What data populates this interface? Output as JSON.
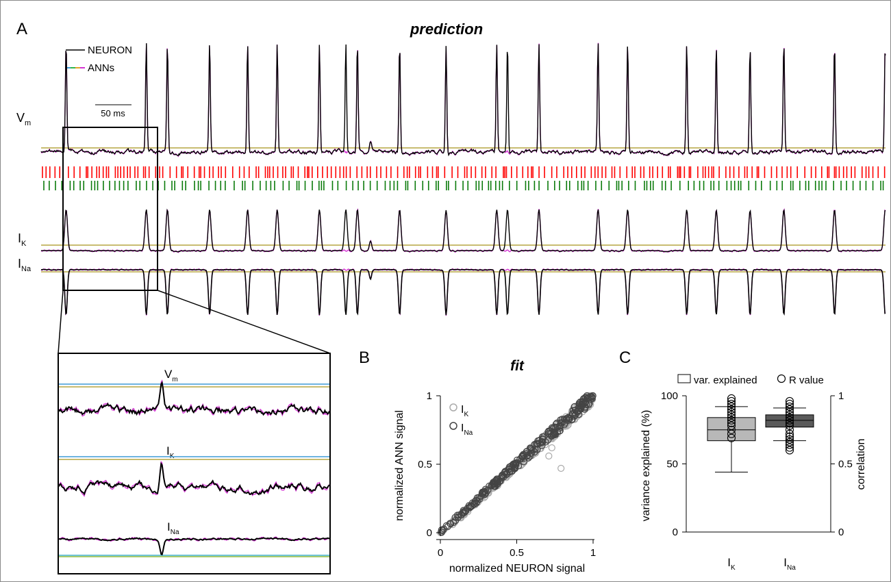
{
  "colors": {
    "neuron": "#000000",
    "ann": "#d433d4",
    "baseline": "#b5a642",
    "baseline_alt": "#3f9bd6",
    "exc_spikes": "#ff0000",
    "inh_spikes": "#0a7a0a",
    "box_light": "#b8b8b8",
    "box_dark": "#5a5a5a",
    "scatter_light": "#aaaaaa",
    "scatter_dark": "#444444"
  },
  "panel_a": {
    "label": "A",
    "title": "prediction",
    "legend": {
      "neuron": "NEURON",
      "ann": "ANNs"
    },
    "scale_bar": "50 ms",
    "traces": {
      "vm": "V",
      "vm_sub": "m",
      "ik": "I",
      "ik_sub": "K",
      "ina": "I",
      "ina_sub": "Na"
    },
    "spike_times_ap": [
      3,
      22,
      27,
      37,
      46,
      53,
      63,
      72,
      82,
      93,
      105,
      115,
      129,
      136,
      150,
      157,
      165,
      173,
      185,
      197
    ],
    "spike_times_missed": [
      57,
      82
    ],
    "spike_times_small": [
      59
    ],
    "inset": {
      "vm": "V",
      "vm_sub": "m",
      "ik": "I",
      "ik_sub": "K",
      "ina": "I",
      "ina_sub": "Na"
    }
  },
  "chart_data": [
    {
      "panel": "B",
      "type": "scatter",
      "title": "fit",
      "xlabel": "normalized NEURON signal",
      "ylabel": "normalized ANN signal",
      "xlim": [
        0,
        1
      ],
      "ylim": [
        0,
        1
      ],
      "x_ticks": [
        "0",
        "0.5",
        "1"
      ],
      "y_ticks": [
        "0",
        "0.5",
        "1"
      ],
      "legend": [
        {
          "name": "I",
          "sub": "K",
          "color": "scatter_light"
        },
        {
          "name": "I",
          "sub": "Na",
          "color": "scatter_dark"
        }
      ],
      "series": [
        {
          "name": "IK",
          "trend": {
            "x0": 0,
            "x1": 1,
            "y0": 0,
            "y1": 1
          },
          "outliers": [
            [
              0.79,
              0.47
            ],
            [
              0.71,
              0.56
            ],
            [
              0.73,
              0.62
            ]
          ]
        },
        {
          "name": "INa",
          "trend": {
            "x0": 0,
            "x1": 1,
            "y0": 0,
            "y1": 1
          },
          "outliers": []
        }
      ]
    },
    {
      "panel": "C",
      "type": "box",
      "label": "C",
      "categories": [
        {
          "name": "I",
          "sub": "K"
        },
        {
          "name": "I",
          "sub": "Na"
        }
      ],
      "ylabel_left": "variance explained (%)",
      "ylabel_right": "correlation",
      "ylim_left": [
        0,
        100
      ],
      "ylim_right": [
        0,
        1
      ],
      "left_ticks": [
        "0",
        "50",
        "100"
      ],
      "right_ticks": [
        "0",
        "0.5",
        "1"
      ],
      "legend": {
        "box": "var. explained",
        "circle": "R value"
      },
      "boxes": [
        {
          "min": 44,
          "q1": 67,
          "median": 75,
          "q3": 84,
          "max": 92
        },
        {
          "min": 67,
          "q1": 77,
          "median": 82,
          "q3": 86,
          "max": 91
        }
      ],
      "r_values": [
        [
          0.69,
          0.72,
          0.75,
          0.78,
          0.8,
          0.82,
          0.84,
          0.86,
          0.88,
          0.9,
          0.92,
          0.94,
          0.96,
          0.98
        ],
        [
          0.6,
          0.62,
          0.64,
          0.66,
          0.68,
          0.7,
          0.72,
          0.75,
          0.78,
          0.8,
          0.82,
          0.84,
          0.86,
          0.88,
          0.9,
          0.92,
          0.94,
          0.96
        ]
      ]
    }
  ]
}
